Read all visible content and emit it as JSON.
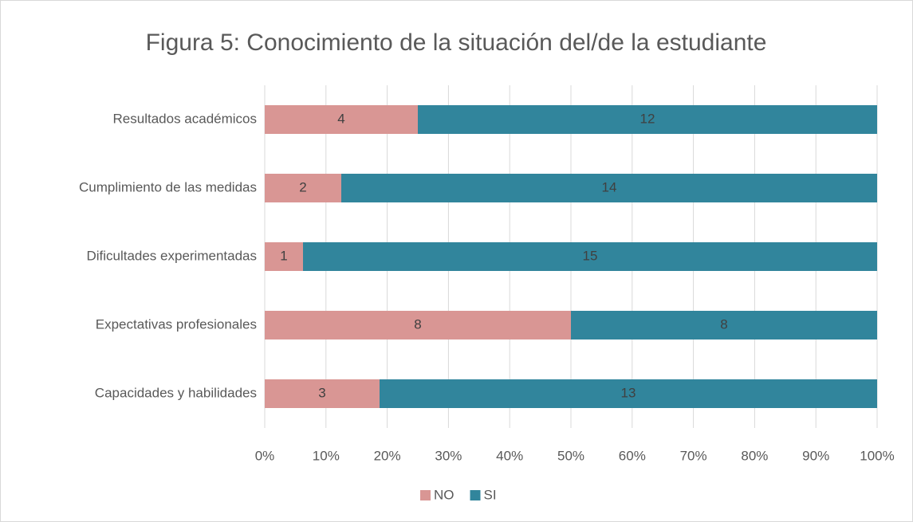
{
  "chart_data": {
    "type": "bar",
    "orientation": "horizontal",
    "stack": "percent",
    "title": "Figura 5: Conocimiento de la situación del/de la estudiante",
    "categories": [
      "Resultados académicos",
      "Cumplimiento de las medidas",
      "Dificultades experimentadas",
      "Expectativas profesionales",
      "Capacidades y habilidades"
    ],
    "series": [
      {
        "name": "NO",
        "color": "#d99694",
        "values": [
          4,
          2,
          1,
          8,
          3
        ]
      },
      {
        "name": "SI",
        "color": "#31859c",
        "values": [
          12,
          14,
          15,
          8,
          13
        ]
      }
    ],
    "xlim": [
      0,
      100
    ],
    "xticks": [
      {
        "value": 0,
        "label": "0%"
      },
      {
        "value": 10,
        "label": "10%"
      },
      {
        "value": 20,
        "label": "20%"
      },
      {
        "value": 30,
        "label": "30%"
      },
      {
        "value": 40,
        "label": "40%"
      },
      {
        "value": 50,
        "label": "50%"
      },
      {
        "value": 60,
        "label": "60%"
      },
      {
        "value": 70,
        "label": "70%"
      },
      {
        "value": 80,
        "label": "80%"
      },
      {
        "value": 90,
        "label": "90%"
      },
      {
        "value": 100,
        "label": "100%"
      }
    ],
    "grid": true,
    "legend": "bottom"
  }
}
